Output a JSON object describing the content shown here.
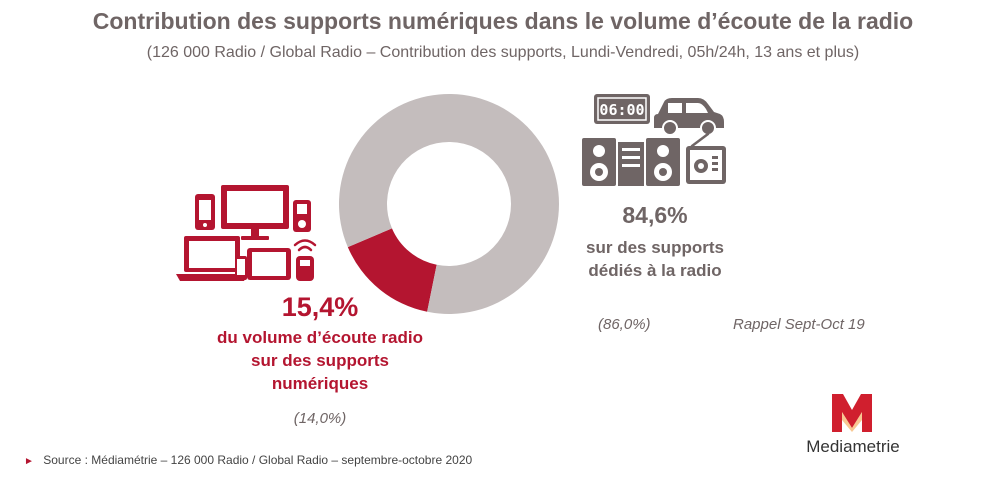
{
  "title": "Contribution des supports numériques dans le volume d’écoute de la radio",
  "subtitle": "(126 000 Radio / Global Radio – Contribution des supports, Lundi-Vendredi, 05h/24h, 13 ans et plus)",
  "chart_data": {
    "type": "pie",
    "title": "Contribution des supports numériques dans le volume d’écoute de la radio",
    "unit": "%",
    "slices": [
      {
        "label": "supports numériques",
        "value": 15.4,
        "value_label": "15,4%",
        "color": "#b41530",
        "previous_label": "(14,0%)"
      },
      {
        "label": "supports dédiés à la radio",
        "value": 84.6,
        "value_label": "84,6%",
        "color": "#c4bdbd",
        "previous_label": "(86,0%)"
      }
    ]
  },
  "digital": {
    "value_label": "15,4%",
    "line1": "du volume d’écoute radio",
    "line2": "sur des supports",
    "line3": "numériques",
    "previous": "(14,0%)"
  },
  "dedicated": {
    "value_label": "84,6%",
    "line1": "sur des supports",
    "line2": "dédiés à la radio",
    "previous": "(86,0%)"
  },
  "clock_text": "06:00",
  "recall_label": "Rappel Sept-Oct 19",
  "source": "Source : Médiamétrie – 126 000 Radio / Global Radio – septembre-octobre 2020",
  "brand": {
    "name": "Mediametrie",
    "accent": "#d01f2e"
  }
}
